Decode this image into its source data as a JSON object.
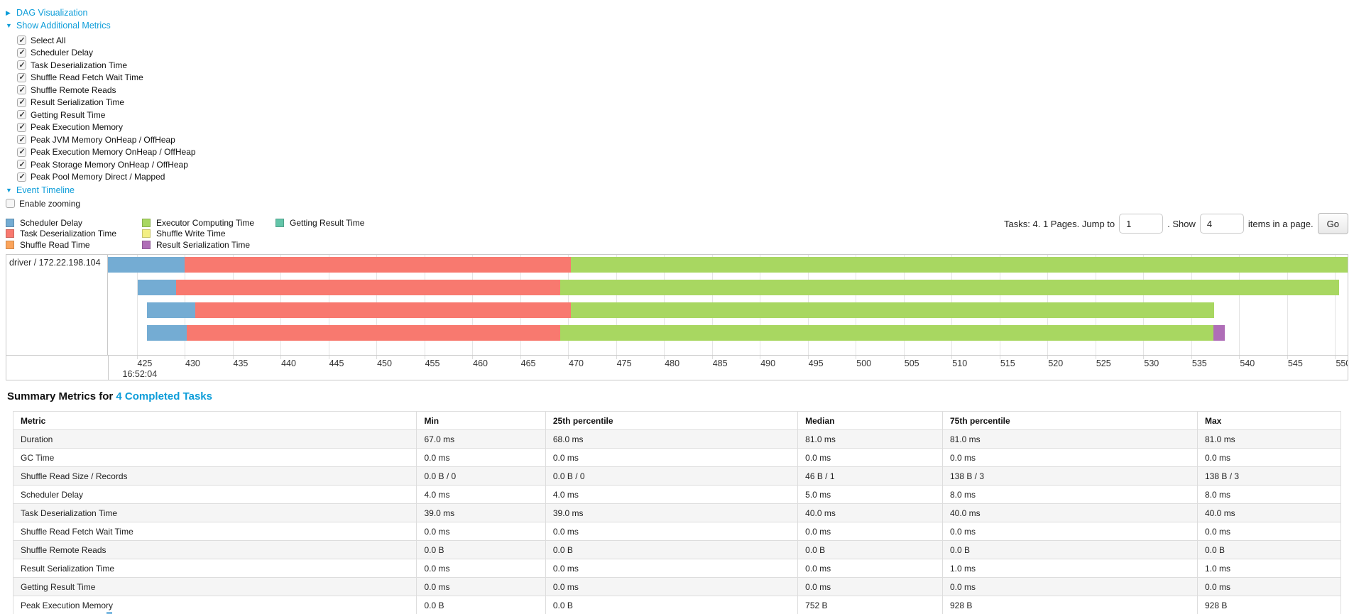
{
  "controls": {
    "dag_link": "DAG Visualization",
    "metrics_toggle": "Show Additional Metrics",
    "metrics_checkboxes": [
      {
        "label": "Select All",
        "checked": true
      },
      {
        "label": "Scheduler Delay",
        "checked": true
      },
      {
        "label": "Task Deserialization Time",
        "checked": true
      },
      {
        "label": "Shuffle Read Fetch Wait Time",
        "checked": true
      },
      {
        "label": "Shuffle Remote Reads",
        "checked": true
      },
      {
        "label": "Result Serialization Time",
        "checked": true
      },
      {
        "label": "Getting Result Time",
        "checked": true
      },
      {
        "label": "Peak Execution Memory",
        "checked": true
      },
      {
        "label": "Peak JVM Memory OnHeap / OffHeap",
        "checked": true
      },
      {
        "label": "Peak Execution Memory OnHeap / OffHeap",
        "checked": true
      },
      {
        "label": "Peak Storage Memory OnHeap / OffHeap",
        "checked": true
      },
      {
        "label": "Peak Pool Memory Direct / Mapped",
        "checked": true
      }
    ],
    "event_timeline_link": "Event Timeline",
    "enable_zooming": {
      "label": "Enable zooming",
      "checked": false
    }
  },
  "colors": {
    "scheduler_delay": "#74acd3",
    "task_deserialization": "#f8796f",
    "shuffle_read": "#fba45b",
    "executor_computing": "#a8d761",
    "shuffle_write": "#f3ef83",
    "result_serialization": "#af6eb7",
    "getting_result": "#63c5a9",
    "link_blue": "#0d9dd9"
  },
  "legend": {
    "columns": [
      [
        {
          "label": "Scheduler Delay",
          "key": "scheduler_delay"
        },
        {
          "label": "Task Deserialization Time",
          "key": "task_deserialization"
        },
        {
          "label": "Shuffle Read Time",
          "key": "shuffle_read"
        }
      ],
      [
        {
          "label": "Executor Computing Time",
          "key": "executor_computing"
        },
        {
          "label": "Shuffle Write Time",
          "key": "shuffle_write"
        },
        {
          "label": "Result Serialization Time",
          "key": "result_serialization"
        }
      ],
      [
        {
          "label": "Getting Result Time",
          "key": "getting_result"
        }
      ]
    ]
  },
  "pagination": {
    "prefix": "Tasks: 4. 1 Pages. Jump to",
    "jump_value": "1",
    "mid": ". Show",
    "show_value": "4",
    "suffix": "items in a page.",
    "go_label": "Go"
  },
  "chart_data": {
    "type": "timeline-gantt",
    "row_label": "driver / 172.22.198.104",
    "axis": {
      "min": 422.0,
      "max": 551.3,
      "tick_step": 5,
      "ticks": [
        425,
        430,
        435,
        440,
        445,
        450,
        455,
        460,
        465,
        470,
        475,
        480,
        485,
        490,
        495,
        500,
        505,
        510,
        515,
        520,
        525,
        530,
        535,
        540,
        545,
        550
      ],
      "time_origin_label": "16:52:04",
      "units": "ms within second"
    },
    "tasks": [
      {
        "segments": [
          {
            "metric": "Scheduler Delay",
            "key": "scheduler_delay",
            "start": 422.0,
            "end": 430.0
          },
          {
            "metric": "Task Deserialization Time",
            "key": "task_deserialization",
            "start": 430.0,
            "end": 470.3
          },
          {
            "metric": "Executor Computing Time",
            "key": "executor_computing",
            "start": 470.3,
            "end": 551.3
          }
        ]
      },
      {
        "segments": [
          {
            "metric": "Scheduler Delay",
            "key": "scheduler_delay",
            "start": 425.1,
            "end": 429.1
          },
          {
            "metric": "Task Deserialization Time",
            "key": "task_deserialization",
            "start": 429.1,
            "end": 469.2
          },
          {
            "metric": "Executor Computing Time",
            "key": "executor_computing",
            "start": 469.2,
            "end": 550.4
          }
        ]
      },
      {
        "segments": [
          {
            "metric": "Scheduler Delay",
            "key": "scheduler_delay",
            "start": 426.1,
            "end": 431.1
          },
          {
            "metric": "Task Deserialization Time",
            "key": "task_deserialization",
            "start": 431.1,
            "end": 470.3
          },
          {
            "metric": "Executor Computing Time",
            "key": "executor_computing",
            "start": 470.3,
            "end": 537.4
          }
        ]
      },
      {
        "segments": [
          {
            "metric": "Scheduler Delay",
            "key": "scheduler_delay",
            "start": 426.1,
            "end": 430.2
          },
          {
            "metric": "Task Deserialization Time",
            "key": "task_deserialization",
            "start": 430.2,
            "end": 469.2
          },
          {
            "metric": "Executor Computing Time",
            "key": "executor_computing",
            "start": 469.2,
            "end": 537.3
          },
          {
            "metric": "Result Serialization Time",
            "key": "result_serialization",
            "start": 537.3,
            "end": 538.5
          }
        ]
      }
    ]
  },
  "summary": {
    "heading_prefix": "Summary Metrics for ",
    "heading_link": "4 Completed Tasks",
    "table": {
      "headers": [
        "Metric",
        "Min",
        "25th percentile",
        "Median",
        "75th percentile",
        "Max"
      ],
      "rows": [
        {
          "metric": "Duration",
          "min": "67.0 ms",
          "p25": "68.0 ms",
          "median": "81.0 ms",
          "p75": "81.0 ms",
          "max": "81.0 ms"
        },
        {
          "metric": "GC Time",
          "min": "0.0 ms",
          "p25": "0.0 ms",
          "median": "0.0 ms",
          "p75": "0.0 ms",
          "max": "0.0 ms"
        },
        {
          "metric": "Shuffle Read Size / Records",
          "min": "0.0 B / 0",
          "p25": "0.0 B / 0",
          "median": "46 B / 1",
          "p75": "138 B / 3",
          "max": "138 B / 3"
        },
        {
          "metric": "Scheduler Delay",
          "min": "4.0 ms",
          "p25": "4.0 ms",
          "median": "5.0 ms",
          "p75": "8.0 ms",
          "max": "8.0 ms"
        },
        {
          "metric": "Task Deserialization Time",
          "min": "39.0 ms",
          "p25": "39.0 ms",
          "median": "40.0 ms",
          "p75": "40.0 ms",
          "max": "40.0 ms"
        },
        {
          "metric": "Shuffle Read Fetch Wait Time",
          "min": "0.0 ms",
          "p25": "0.0 ms",
          "median": "0.0 ms",
          "p75": "0.0 ms",
          "max": "0.0 ms"
        },
        {
          "metric": "Shuffle Remote Reads",
          "min": "0.0 B",
          "p25": "0.0 B",
          "median": "0.0 B",
          "p75": "0.0 B",
          "max": "0.0 B"
        },
        {
          "metric": "Result Serialization Time",
          "min": "0.0 ms",
          "p25": "0.0 ms",
          "median": "0.0 ms",
          "p75": "1.0 ms",
          "max": "1.0 ms"
        },
        {
          "metric": "Getting Result Time",
          "min": "0.0 ms",
          "p25": "0.0 ms",
          "median": "0.0 ms",
          "p75": "0.0 ms",
          "max": "0.0 ms"
        },
        {
          "metric": "Peak Execution Memory",
          "min": "0.0 B",
          "p25": "0.0 B",
          "median": "752 B",
          "p75": "928 B",
          "max": "928 B"
        }
      ]
    }
  }
}
